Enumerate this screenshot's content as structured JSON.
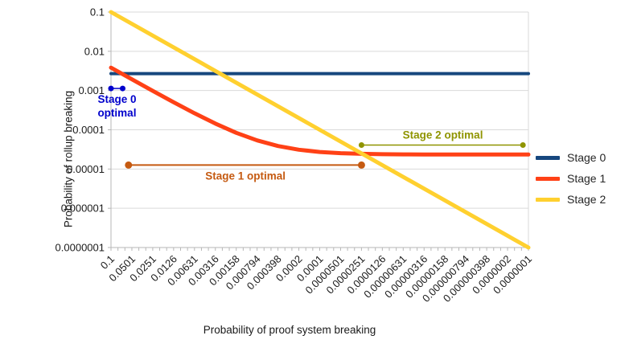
{
  "figure": {
    "x_axis_title": "Probability of proof system breaking",
    "y_axis_title": "Probability of rollup breaking"
  },
  "chart_data": {
    "type": "line",
    "x_scale": "log-descending",
    "y_scale": "log",
    "x_range": [
      0.1,
      1e-07
    ],
    "y_range": [
      0.1,
      1e-07
    ],
    "grid": "horizontal-only",
    "legend_position": "right",
    "x_ticks": [
      "0.1",
      "0.0501",
      "0.0251",
      "0.0126",
      "0.00631",
      "0.00316",
      "0.00158",
      "0.000794",
      "0.000398",
      "0.0002",
      "0.0001",
      "0.0000501",
      "0.0000251",
      "0.0000126",
      "0.00000631",
      "0.00000316",
      "0.00000158",
      "0.000000794",
      "0.000000398",
      "0.0000002",
      "0.0000001"
    ],
    "y_ticks": [
      "0.1",
      "0.01",
      "0.001",
      "0.0001",
      "0.00001",
      "0.000001",
      "0.0000001"
    ],
    "series": [
      {
        "name": "Stage 0",
        "color": "#16477e",
        "points": [
          [
            0.1,
            0.0027
          ],
          [
            1e-07,
            0.0027
          ]
        ]
      },
      {
        "name": "Stage 1",
        "color": "#ff4116",
        "points": [
          [
            0.1,
            0.00383
          ],
          [
            0.0501,
            0.00193
          ],
          [
            0.0251,
            0.00098
          ],
          [
            0.0126,
            0.000504
          ],
          [
            0.00631,
            0.000264
          ],
          [
            0.00316,
            0.000144
          ],
          [
            0.00158,
            8.35e-05
          ],
          [
            0.000794,
            5.37e-05
          ],
          [
            0.000398,
            3.86e-05
          ],
          [
            0.0002,
            3.1e-05
          ],
          [
            0.0001,
            2.72e-05
          ],
          [
            5.01e-05,
            2.53e-05
          ],
          [
            2.51e-05,
            2.44e-05
          ],
          [
            1.26e-05,
            2.39e-05
          ],
          [
            6.31e-06,
            2.36e-05
          ],
          [
            3.16e-06,
            2.35e-05
          ],
          [
            1.58e-06,
            2.35e-05
          ],
          [
            7.94e-07,
            2.34e-05
          ],
          [
            3.98e-07,
            2.34e-05
          ],
          [
            2e-07,
            2.34e-05
          ],
          [
            1e-07,
            2.34e-05
          ]
        ]
      },
      {
        "name": "Stage 2",
        "color": "#ffd02f",
        "points": [
          [
            0.1,
            0.1
          ],
          [
            1e-07,
            1e-07
          ]
        ]
      }
    ],
    "annotations": [
      {
        "label_lines": [
          "Stage 0",
          "optimal"
        ],
        "color": "#0000cc",
        "y": 0.00113,
        "x1": 0.1,
        "x2": 0.068,
        "label_x": 0.082,
        "label_side": "below",
        "line_width": 1.5,
        "dot_r": 3.5
      },
      {
        "label_lines": [
          "Stage 1 optimal"
        ],
        "color": "#c55a11",
        "y": 1.26e-05,
        "x1": 0.056,
        "x2": 2.51e-05,
        "label_x": 0.00117,
        "label_side": "below",
        "line_width": 2,
        "dot_r": 4.5
      },
      {
        "label_lines": [
          "Stage 2 optimal"
        ],
        "color": "#8f9400",
        "y": 4.08e-05,
        "x1": 2.51e-05,
        "x2": 1.2e-07,
        "label_x": 1.7e-06,
        "label_side": "above",
        "line_width": 1.5,
        "dot_r": 3.5
      }
    ]
  }
}
